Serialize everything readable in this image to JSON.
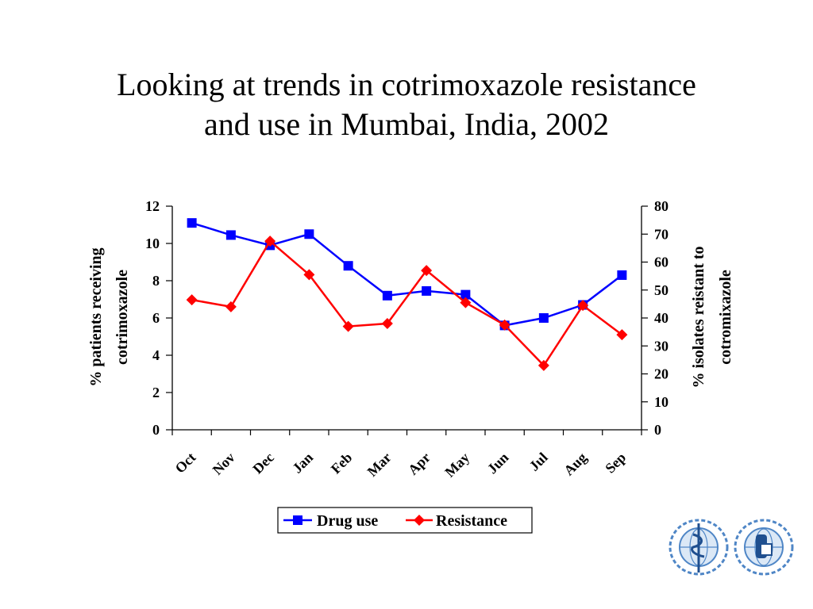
{
  "slide": {
    "title_line1": "Looking at trends in cotrimoxazole resistance",
    "title_line2": "and use in Mumbai, India, 2002"
  },
  "chart_data": {
    "type": "line",
    "categories": [
      "Oct",
      "Nov",
      "Dec",
      "Jan",
      "Feb",
      "Mar",
      "Apr",
      "May",
      "Jun",
      "Jul",
      "Aug",
      "Sep"
    ],
    "series": [
      {
        "name": "Drug use",
        "axis": "left",
        "color": "#0000ff",
        "marker": "square",
        "values": [
          11.1,
          10.45,
          9.9,
          10.5,
          8.8,
          7.2,
          7.45,
          7.25,
          5.6,
          6.0,
          6.7,
          8.3
        ]
      },
      {
        "name": "Resistance",
        "axis": "right",
        "color": "#ff0000",
        "marker": "diamond",
        "values": [
          46.5,
          44.0,
          67.5,
          55.5,
          37.0,
          38.0,
          57.0,
          45.5,
          37.5,
          23.0,
          44.5,
          34.0
        ]
      }
    ],
    "y_left": {
      "label_line1": "% patients receiving",
      "label_line2": "cotrimoxazole",
      "ylim": [
        0,
        12
      ],
      "ticks": [
        0,
        2,
        4,
        6,
        8,
        10,
        12
      ]
    },
    "y_right": {
      "label_line1": "% isolates reistant to",
      "label_line2": "cotromixazole",
      "ylim": [
        0,
        80
      ],
      "ticks": [
        0,
        10,
        20,
        30,
        40,
        50,
        60,
        70,
        80
      ]
    },
    "grid": false,
    "legend_position": "bottom"
  },
  "logos": [
    {
      "name": "who-emblem",
      "color": "#4f86c6"
    },
    {
      "name": "paho-emblem",
      "color": "#4f86c6"
    }
  ]
}
